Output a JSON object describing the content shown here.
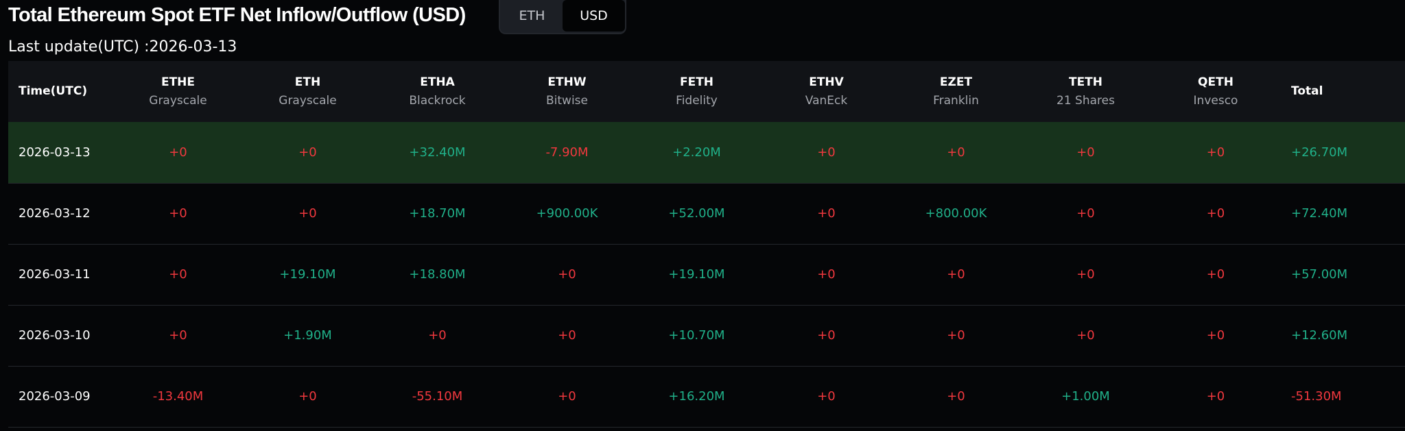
{
  "header": {
    "title": "Total Ethereum Spot ETF Net Inflow/Outflow (USD)",
    "last_update": "Last update(UTC) :2026-03-13"
  },
  "unit_toggle": {
    "options": [
      "ETH",
      "USD"
    ],
    "selected": "USD"
  },
  "table": {
    "columns": [
      {
        "ticker": "Time(UTC)",
        "issuer": ""
      },
      {
        "ticker": "ETHE",
        "issuer": "Grayscale"
      },
      {
        "ticker": "ETH",
        "issuer": "Grayscale"
      },
      {
        "ticker": "ETHA",
        "issuer": "Blackrock"
      },
      {
        "ticker": "ETHW",
        "issuer": "Bitwise"
      },
      {
        "ticker": "FETH",
        "issuer": "Fidelity"
      },
      {
        "ticker": "ETHV",
        "issuer": "VanEck"
      },
      {
        "ticker": "EZET",
        "issuer": "Franklin"
      },
      {
        "ticker": "TETH",
        "issuer": "21 Shares"
      },
      {
        "ticker": "QETH",
        "issuer": "Invesco"
      },
      {
        "ticker": "Total",
        "issuer": ""
      }
    ],
    "rows": [
      {
        "date": "2026-03-13",
        "highlighted": true,
        "values": [
          "+0",
          "+0",
          "+32.40M",
          "-7.90M",
          "+2.20M",
          "+0",
          "+0",
          "+0",
          "+0",
          "+26.70M"
        ]
      },
      {
        "date": "2026-03-12",
        "highlighted": false,
        "values": [
          "+0",
          "+0",
          "+18.70M",
          "+900.00K",
          "+52.00M",
          "+0",
          "+800.00K",
          "+0",
          "+0",
          "+72.40M"
        ]
      },
      {
        "date": "2026-03-11",
        "highlighted": false,
        "values": [
          "+0",
          "+19.10M",
          "+18.80M",
          "+0",
          "+19.10M",
          "+0",
          "+0",
          "+0",
          "+0",
          "+57.00M"
        ]
      },
      {
        "date": "2026-03-10",
        "highlighted": false,
        "values": [
          "+0",
          "+1.90M",
          "+0",
          "+0",
          "+10.70M",
          "+0",
          "+0",
          "+0",
          "+0",
          "+12.60M"
        ]
      },
      {
        "date": "2026-03-09",
        "highlighted": false,
        "values": [
          "-13.40M",
          "+0",
          "-55.10M",
          "+0",
          "+16.20M",
          "+0",
          "+0",
          "+1.00M",
          "+0",
          "-51.30M"
        ]
      }
    ]
  },
  "colors": {
    "positive": "#20b089",
    "negative": "#f0383e",
    "highlight_row": "#17331c"
  }
}
